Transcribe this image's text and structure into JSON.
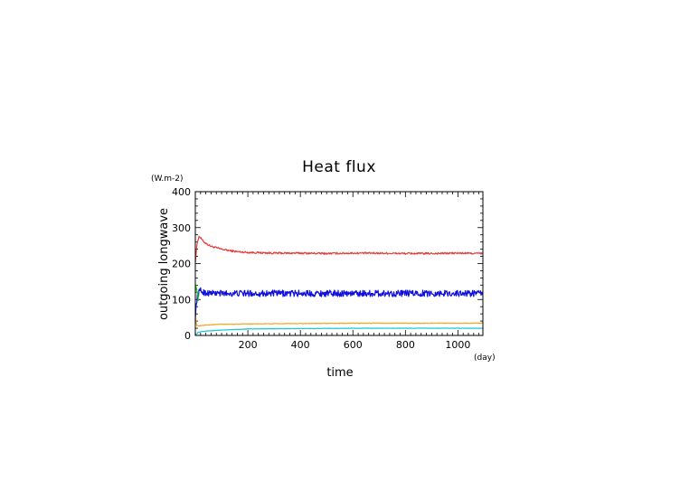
{
  "chart_data": {
    "type": "line",
    "title": "Heat flux",
    "xlabel": "time",
    "ylabel": "outgoing longwave",
    "x_unit": "(day)",
    "y_unit": "(W.m-2)",
    "xlim": [
      0,
      1095
    ],
    "ylim": [
      0,
      400
    ],
    "x_ticks": [
      200,
      400,
      600,
      800,
      1000
    ],
    "y_ticks": [
      0,
      100,
      200,
      300,
      400
    ],
    "x_tick_labels": [
      "200",
      "400",
      "600",
      "800",
      "1000"
    ],
    "y_tick_labels": [
      "0",
      "100",
      "200",
      "300",
      "400"
    ],
    "grid": false,
    "series": [
      {
        "color": "#e83a3a",
        "x": [
          0,
          4,
          8,
          14,
          20,
          30,
          45,
          60,
          80,
          100,
          130,
          160,
          200,
          300,
          400,
          500,
          600,
          700,
          800,
          900,
          1000,
          1095
        ],
        "y": [
          205,
          235,
          260,
          275,
          272,
          262,
          254,
          248,
          244,
          240,
          236,
          233,
          231,
          229,
          229,
          228,
          229,
          229,
          228,
          228,
          229,
          228
        ],
        "noise": 2.5
      },
      {
        "color": "#1010dd",
        "x": [
          0,
          5,
          10,
          20,
          30,
          50,
          100,
          200,
          400,
          600,
          800,
          1000,
          1095
        ],
        "y": [
          50,
          95,
          115,
          125,
          120,
          118,
          117,
          117,
          117,
          117,
          117,
          117,
          117
        ],
        "noise": 9
      },
      {
        "color": "#22cc22",
        "x": [
          0,
          3,
          6,
          9,
          12
        ],
        "y": [
          125,
          135,
          122,
          118,
          95
        ],
        "noise": 5
      },
      {
        "color": "#f5a623",
        "x": [
          0,
          5,
          10,
          20,
          40,
          100,
          200,
          400,
          600,
          800,
          1000,
          1095
        ],
        "y": [
          55,
          28,
          26,
          27,
          29,
          31,
          32,
          33,
          34,
          34,
          34,
          34
        ],
        "noise": 0.8
      },
      {
        "color": "#19c8d8",
        "x": [
          0,
          5,
          10,
          20,
          40,
          100,
          200,
          400,
          600,
          800,
          1000,
          1095
        ],
        "y": [
          5,
          3,
          8,
          10,
          12,
          15,
          18,
          19,
          20,
          20,
          20,
          20
        ],
        "noise": 0.6
      }
    ]
  }
}
